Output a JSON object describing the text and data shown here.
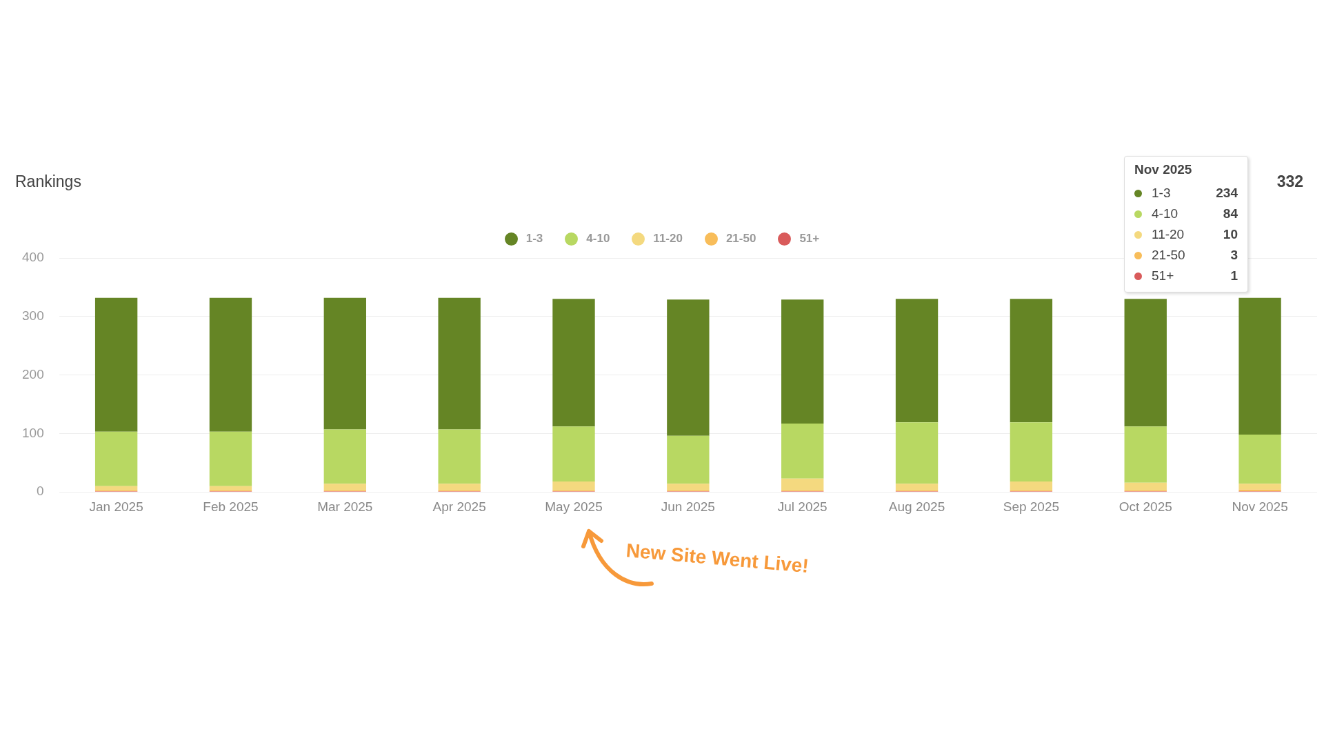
{
  "chart_data": {
    "type": "bar",
    "title": "Rankings",
    "categories": [
      "Jan 2025",
      "Feb 2025",
      "Mar 2025",
      "Apr 2025",
      "May 2025",
      "Jun 2025",
      "Jul 2025",
      "Aug 2025",
      "Sep 2025",
      "Oct 2025",
      "Nov 2025"
    ],
    "stacked": true,
    "series": [
      {
        "name": "51+",
        "color": "#d95b5b",
        "values": [
          1,
          1,
          1,
          1,
          1,
          1,
          1,
          1,
          1,
          1,
          1
        ]
      },
      {
        "name": "21-50",
        "color": "#f8bd5a",
        "values": [
          2,
          2,
          2,
          2,
          2,
          2,
          2,
          2,
          2,
          2,
          3
        ]
      },
      {
        "name": "11-20",
        "color": "#f4d97f",
        "values": [
          7,
          7,
          11,
          11,
          15,
          11,
          20,
          11,
          15,
          13,
          10
        ]
      },
      {
        "name": "4-10",
        "color": "#b8d862",
        "values": [
          93,
          93,
          93,
          93,
          94,
          82,
          94,
          105,
          101,
          96,
          84
        ]
      },
      {
        "name": "1-3",
        "color": "#658525",
        "values": [
          229,
          229,
          225,
          225,
          218,
          233,
          212,
          211,
          211,
          218,
          234
        ]
      }
    ],
    "ylim": [
      0,
      400
    ],
    "yticks": [
      0,
      100,
      200,
      300,
      400
    ],
    "grid": "y",
    "legend": "top",
    "annotations": [
      "332",
      "New Site Went Live!",
      "Nov 2025",
      "234",
      "84",
      "10",
      "3",
      "1"
    ]
  }
}
